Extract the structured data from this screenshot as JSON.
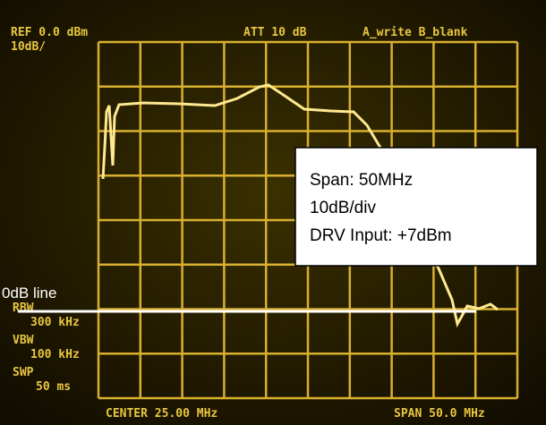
{
  "screen": {
    "ref": "REF 0.0 dBm",
    "scale": "10dB/",
    "att": "ATT 10 dB",
    "trace_mode": "A_write B_blank",
    "rbw_label": "RBW",
    "rbw": "300 kHz",
    "vbw_label": "VBW",
    "vbw": "100 kHz",
    "swp_label": "SWP",
    "swp": "50 ms",
    "center": "CENTER 25.00 MHz",
    "span": "SPAN 50.0 MHz"
  },
  "annotation": {
    "lines": [
      "Span: 50MHz",
      "10dB/div",
      "DRV Input: +7dBm"
    ],
    "line_label": "0dB line"
  }
}
